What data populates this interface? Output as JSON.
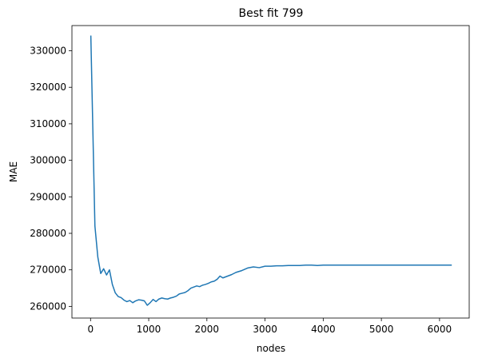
{
  "chart_data": {
    "type": "line",
    "title": "Best fit 799",
    "xlabel": "nodes",
    "ylabel": "MAE",
    "xlim": [
      -320,
      6510
    ],
    "ylim": [
      256800,
      336900
    ],
    "xticks": [
      0,
      1000,
      2000,
      3000,
      4000,
      5000,
      6000
    ],
    "yticks": [
      260000,
      270000,
      280000,
      290000,
      300000,
      310000,
      320000,
      330000
    ],
    "grid": false,
    "line_color": "#1f77b4",
    "series": [
      {
        "x": [
          5,
          75,
          125,
          175,
          225,
          275,
          325,
          375,
          425,
          475,
          525,
          575,
          625,
          675,
          725,
          775,
          825,
          875,
          925,
          975,
          1025,
          1075,
          1125,
          1175,
          1225,
          1275,
          1325,
          1375,
          1425,
          1475,
          1525,
          1575,
          1625,
          1675,
          1725,
          1775,
          1825,
          1875,
          1925,
          1975,
          2025,
          2075,
          2125,
          2175,
          2225,
          2275,
          2325,
          2375,
          2425,
          2500,
          2600,
          2700,
          2800,
          2900,
          3000,
          3100,
          3200,
          3300,
          3400,
          3500,
          3600,
          3700,
          3800,
          3900,
          4000,
          4200,
          4500,
          5000,
          5500,
          6000,
          6200
        ],
        "y": [
          334000,
          282000,
          273500,
          269000,
          270300,
          268600,
          270000,
          266000,
          263700,
          262700,
          262400,
          261700,
          261300,
          261600,
          261000,
          261500,
          261800,
          261700,
          261500,
          260300,
          261000,
          261900,
          261300,
          262000,
          262300,
          262100,
          262000,
          262300,
          262500,
          262800,
          263400,
          263600,
          263800,
          264300,
          265000,
          265300,
          265600,
          265400,
          265800,
          266000,
          266300,
          266700,
          266900,
          267400,
          268300,
          267800,
          268100,
          268400,
          268700,
          269300,
          269800,
          270500,
          270800,
          270600,
          271000,
          271000,
          271100,
          271100,
          271200,
          271200,
          271200,
          271300,
          271300,
          271200,
          271300,
          271300,
          271300,
          271300,
          271300,
          271300,
          271300
        ]
      }
    ]
  }
}
